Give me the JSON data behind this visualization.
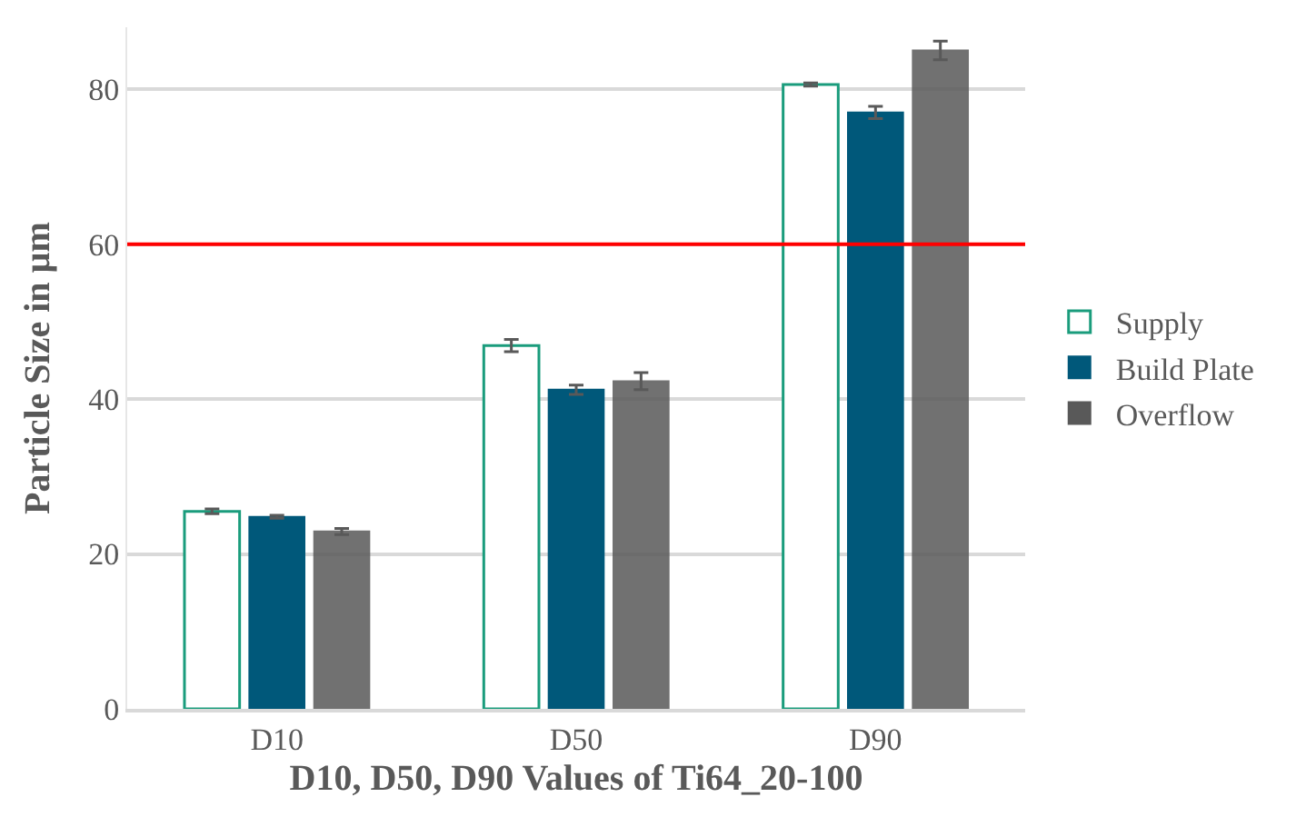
{
  "chart_data": {
    "type": "bar",
    "xlabel": "D10, D50, D90 Values of Ti64_20-100",
    "ylabel": "Particle Size in µm",
    "categories": [
      "D10",
      "D50",
      "D90"
    ],
    "series": [
      {
        "name": "Supply",
        "color": "#1a9c7c",
        "values": [
          25.5,
          46.9,
          80.6
        ],
        "errors": [
          0.3,
          0.8,
          0.2
        ]
      },
      {
        "name": "Build Plate",
        "color": "#00587a",
        "values": [
          24.8,
          41.2,
          77.0
        ],
        "errors": [
          0.2,
          0.6,
          0.8
        ]
      },
      {
        "name": "Overflow",
        "color": "#595959",
        "values": [
          22.9,
          42.3,
          85.0
        ],
        "errors": [
          0.4,
          1.1,
          1.2
        ]
      }
    ],
    "ylim": [
      0,
      88
    ],
    "yticks": [
      0,
      20,
      40,
      60,
      80
    ],
    "grid": "y",
    "legend": "right",
    "ref_lines": [
      {
        "axis": "y",
        "value": 60,
        "color": "#ff0000"
      }
    ]
  }
}
